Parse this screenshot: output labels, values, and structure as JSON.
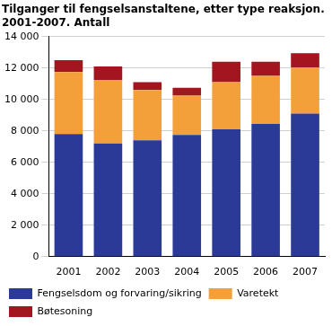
{
  "chart_data": {
    "type": "bar",
    "title": [
      "Tilganger til fengselsanstaltene, etter type reaksjon.",
      "2001-2007. Antall"
    ],
    "categories": [
      "2001",
      "2002",
      "2003",
      "2004",
      "2005",
      "2006",
      "2007"
    ],
    "series": [
      {
        "name": "Fengselsdom og forvaring/sikring",
        "color": "#2b3a97",
        "values": [
          7800,
          7200,
          7400,
          7750,
          8100,
          8450,
          9100
        ]
      },
      {
        "name": "Varetekt",
        "color": "#f4a03a",
        "values": [
          3950,
          4050,
          3200,
          2500,
          3000,
          3050,
          2950
        ]
      },
      {
        "name": "Bøtesoning",
        "color": "#a3161f",
        "values": [
          750,
          850,
          500,
          500,
          1300,
          900,
          900
        ]
      }
    ],
    "stacked": true,
    "ylim": [
      0,
      14000
    ],
    "yticks": [
      0,
      {
        "value": 2000,
        "label": "2 000"
      },
      {
        "value": 4000,
        "label": "4 000"
      },
      {
        "value": 6000,
        "label": "6 000"
      },
      {
        "value": 8000,
        "label": "8 000"
      },
      {
        "value": 10000,
        "label": "10 000"
      },
      {
        "value": 12000,
        "label": "12 000"
      },
      {
        "value": 14000,
        "label": "14 000"
      }
    ],
    "grid": true,
    "legend": "bottom"
  }
}
